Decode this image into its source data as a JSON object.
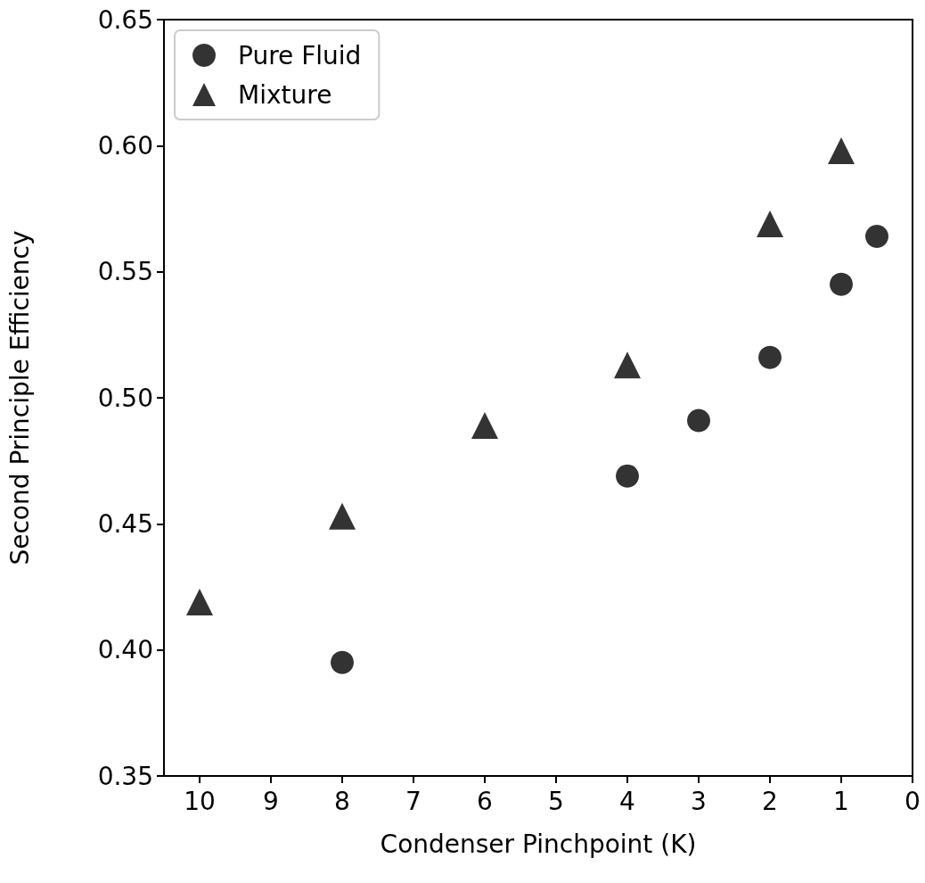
{
  "chart_data": {
    "type": "scatter",
    "xlabel": "Condenser Pinchpoint (K)",
    "ylabel": "Second Principle Efficiency",
    "xlim": [
      10.5,
      0
    ],
    "xticks": [
      10,
      9,
      8,
      7,
      6,
      5,
      4,
      3,
      2,
      1,
      0
    ],
    "ylim": [
      0.35,
      0.65
    ],
    "yticks": [
      0.35,
      {
        "value": 0.4,
        "label": "0.40"
      },
      0.45,
      {
        "value": 0.5,
        "label": "0.50"
      },
      0.55,
      {
        "value": 0.6,
        "label": "0.60"
      },
      0.65
    ],
    "legend": "top left",
    "series": [
      {
        "name": "Pure Fluid",
        "color": "#000000",
        "marker": "circle",
        "x": [
          8,
          4,
          3,
          2,
          1,
          0.5
        ],
        "values": [
          0.395,
          0.469,
          0.491,
          0.516,
          0.545,
          0.564
        ]
      },
      {
        "name": "Mixture",
        "color": "#000000",
        "marker": "triangle",
        "x": [
          10,
          8,
          6,
          4,
          2,
          1
        ],
        "values": [
          0.419,
          0.453,
          0.489,
          0.513,
          0.569,
          0.598
        ]
      }
    ]
  }
}
